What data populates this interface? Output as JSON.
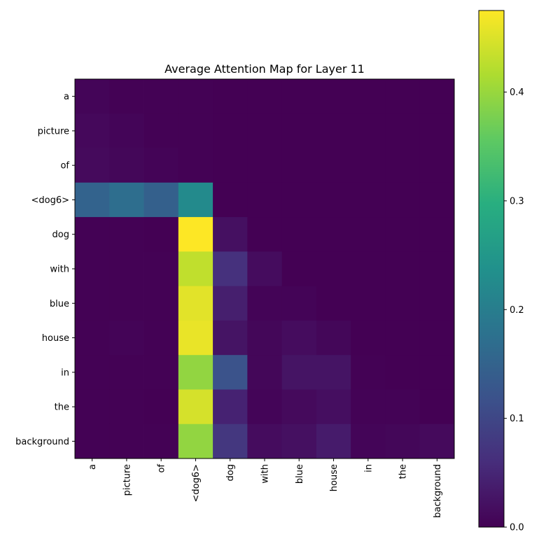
{
  "chart_data": {
    "type": "heatmap",
    "title": "Average Attention Map for Layer 11",
    "xlabel": "",
    "ylabel": "",
    "x_tokens": [
      "a",
      "picture",
      "of",
      "<dog6>",
      "dog",
      "with",
      "blue",
      "house",
      "in",
      "the",
      "background"
    ],
    "y_tokens": [
      "a",
      "picture",
      "of",
      "<dog6>",
      "dog",
      "with",
      "blue",
      "house",
      "in",
      "the",
      "background"
    ],
    "values": [
      [
        0.006,
        0.002,
        0.001,
        0.001,
        0.0,
        0.0,
        0.0,
        0.0,
        0.0,
        0.0,
        0.0
      ],
      [
        0.01,
        0.006,
        0.001,
        0.001,
        0.0,
        0.0,
        0.0,
        0.0,
        0.0,
        0.0,
        0.0
      ],
      [
        0.012,
        0.008,
        0.004,
        0.001,
        0.0,
        0.0,
        0.0,
        0.0,
        0.0,
        0.0,
        0.0
      ],
      [
        0.15,
        0.17,
        0.145,
        0.225,
        0.0,
        0.0,
        0.0,
        0.0,
        0.0,
        0.0,
        0.0
      ],
      [
        0.001,
        0.001,
        0.0,
        0.475,
        0.02,
        0.0,
        0.0,
        0.0,
        0.0,
        0.0,
        0.0
      ],
      [
        0.002,
        0.002,
        0.001,
        0.43,
        0.065,
        0.015,
        0.0,
        0.0,
        0.0,
        0.0,
        0.0
      ],
      [
        0.002,
        0.002,
        0.001,
        0.455,
        0.04,
        0.004,
        0.004,
        0.0,
        0.0,
        0.0,
        0.0
      ],
      [
        0.002,
        0.004,
        0.002,
        0.46,
        0.025,
        0.008,
        0.015,
        0.008,
        0.0,
        0.0,
        0.0
      ],
      [
        0.002,
        0.002,
        0.001,
        0.395,
        0.12,
        0.008,
        0.025,
        0.025,
        0.001,
        0.0,
        0.0
      ],
      [
        0.001,
        0.001,
        0.0,
        0.445,
        0.045,
        0.006,
        0.012,
        0.018,
        0.003,
        0.003,
        0.0
      ],
      [
        0.002,
        0.002,
        0.001,
        0.395,
        0.075,
        0.015,
        0.02,
        0.035,
        0.006,
        0.008,
        0.012
      ]
    ],
    "colormap": "viridis",
    "colorbar": {
      "vmin": 0.0,
      "vmax": 0.475,
      "ticks": [
        0.0,
        0.1,
        0.2,
        0.3,
        0.4
      ],
      "tick_labels": [
        "0.0",
        "0.1",
        "0.2",
        "0.3",
        "0.4"
      ]
    },
    "grid": false
  }
}
